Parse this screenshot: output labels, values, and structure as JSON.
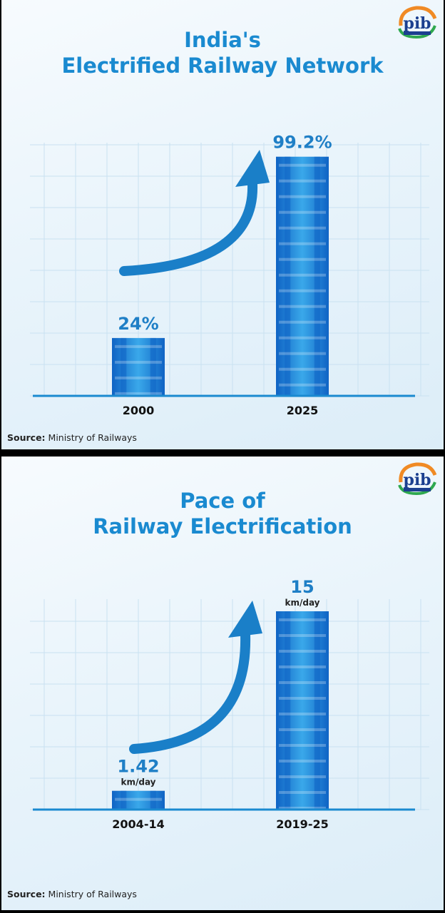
{
  "colors": {
    "title": "#1a8ad0",
    "value_label": "#1f7fc6",
    "bar_light": "#3aa8ea",
    "bar_dark": "#0f63c4",
    "baseline": "#1a8ad0",
    "arrow": "#1a7fc8",
    "grid": "#c9e1f1"
  },
  "panels": [
    {
      "title_line1": "India's",
      "title_line2": "Electrified Railway Network",
      "source_label": "Source:",
      "source_text": "Ministry of Railways",
      "logo_text": "pib",
      "arrow_icon": "curved-up-arrow-icon"
    },
    {
      "title_line1": "Pace of",
      "title_line2": "Railway Electrification",
      "source_label": "Source:",
      "source_text": "Ministry of Railways",
      "logo_text": "pib",
      "arrow_icon": "curved-up-arrow-icon"
    }
  ],
  "chart_data": [
    {
      "type": "bar",
      "title": "India's Electrified Railway Network",
      "categories": [
        "2000",
        "2025"
      ],
      "values": [
        24,
        99.2
      ],
      "value_labels": [
        "24%",
        "99.2%"
      ],
      "unit_labels": [
        "",
        ""
      ],
      "ylim": [
        0,
        100
      ],
      "grid": true
    },
    {
      "type": "bar",
      "title": "Pace of Railway Electrification",
      "categories": [
        "2004-14",
        "2019-25"
      ],
      "values": [
        1.42,
        15
      ],
      "value_labels": [
        "1.42",
        "15"
      ],
      "unit_labels": [
        "km/day",
        "km/day"
      ],
      "ylim": [
        0,
        15
      ],
      "grid": true
    }
  ]
}
